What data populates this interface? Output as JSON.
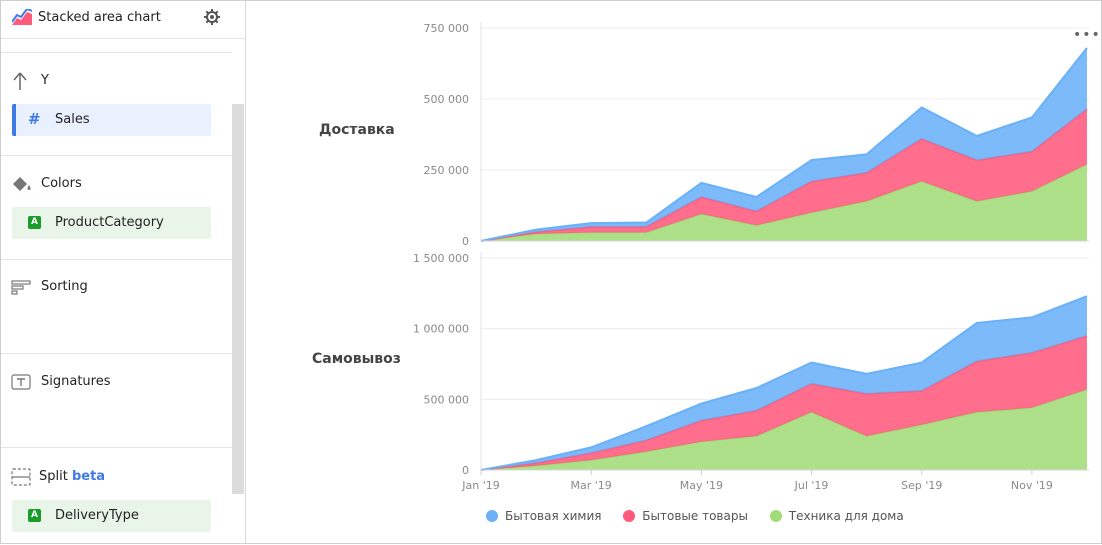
{
  "header": {
    "title": "Stacked area chart"
  },
  "sidebar": {
    "y": {
      "title": "Y",
      "field": "Sales"
    },
    "colors": {
      "title": "Colors",
      "field": "ProductCategory",
      "badge": "A"
    },
    "sorting": {
      "title": "Sorting"
    },
    "signatures": {
      "title": "Signatures"
    },
    "split": {
      "title": "Split",
      "badge_text": "beta",
      "field": "DeliveryType",
      "badge": "A"
    }
  },
  "chart_data": [
    {
      "type": "area",
      "stacked": true,
      "split_label": "Доставка",
      "x": [
        "Jan '19",
        "Feb '19",
        "Mar '19",
        "Apr '19",
        "May '19",
        "Jun '19",
        "Jul '19",
        "Aug '19",
        "Sep '19",
        "Oct '19",
        "Nov '19",
        "Dec '19"
      ],
      "ylim": [
        0,
        750000
      ],
      "yticks": [
        "0",
        "250 000",
        "500 000",
        "750 000"
      ],
      "series": [
        {
          "name": "Техника для дома",
          "color": "#a2dc79",
          "values": [
            0,
            25000,
            30000,
            30000,
            95000,
            55000,
            100000,
            140000,
            210000,
            140000,
            175000,
            270000
          ]
        },
        {
          "name": "Бытовые товары",
          "color": "#ff5a7c",
          "values": [
            0,
            7000,
            20000,
            20000,
            60000,
            50000,
            110000,
            100000,
            150000,
            145000,
            140000,
            195000
          ]
        },
        {
          "name": "Бытовая химия",
          "color": "#6ab1f8",
          "values": [
            0,
            8000,
            13000,
            15000,
            50000,
            50000,
            75000,
            65000,
            110000,
            85000,
            120000,
            215000
          ]
        }
      ]
    },
    {
      "type": "area",
      "stacked": true,
      "split_label": "Самовывоз",
      "x": [
        "Jan '19",
        "Feb '19",
        "Mar '19",
        "Apr '19",
        "May '19",
        "Jun '19",
        "Jul '19",
        "Aug '19",
        "Sep '19",
        "Oct '19",
        "Nov '19",
        "Dec '19"
      ],
      "xticks": [
        "Jan '19",
        "Mar '19",
        "May '19",
        "Jul '19",
        "Sep '19",
        "Nov '19"
      ],
      "ylim": [
        0,
        1500000
      ],
      "yticks": [
        "0",
        "500 000",
        "1 000 000",
        "1 500 000"
      ],
      "series": [
        {
          "name": "Техника для дома",
          "color": "#a2dc79",
          "values": [
            0,
            30000,
            70000,
            130000,
            200000,
            240000,
            410000,
            240000,
            320000,
            410000,
            440000,
            570000
          ]
        },
        {
          "name": "Бытовые товары",
          "color": "#ff5a7c",
          "values": [
            0,
            20000,
            50000,
            80000,
            150000,
            180000,
            200000,
            300000,
            240000,
            360000,
            390000,
            380000
          ]
        },
        {
          "name": "Бытовая химия",
          "color": "#6ab1f8",
          "values": [
            0,
            20000,
            40000,
            100000,
            120000,
            160000,
            150000,
            140000,
            200000,
            270000,
            250000,
            280000
          ]
        }
      ]
    }
  ],
  "legend": [
    {
      "name": "Бытовая химия",
      "color": "#6ab1f8"
    },
    {
      "name": "Бытовые товары",
      "color": "#ff5a7c"
    },
    {
      "name": "Техника для дома",
      "color": "#a2dc79"
    }
  ]
}
